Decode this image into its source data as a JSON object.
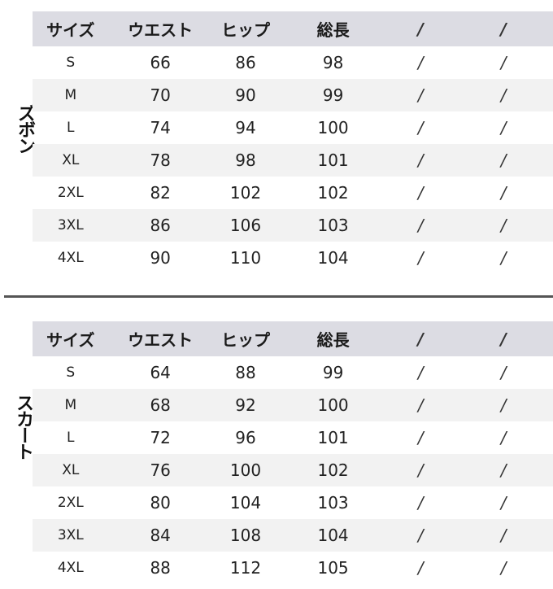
{
  "headers": [
    "サイズ",
    "ウエスト",
    "ヒップ",
    "総長",
    "/",
    "/"
  ],
  "pants": {
    "label": "ズボン",
    "rows": [
      [
        "S",
        "66",
        "86",
        "98",
        "/",
        "/"
      ],
      [
        "M",
        "70",
        "90",
        "99",
        "/",
        "/"
      ],
      [
        "L",
        "74",
        "94",
        "100",
        "/",
        "/"
      ],
      [
        "XL",
        "78",
        "98",
        "101",
        "/",
        "/"
      ],
      [
        "2XL",
        "82",
        "102",
        "102",
        "/",
        "/"
      ],
      [
        "3XL",
        "86",
        "106",
        "103",
        "/",
        "/"
      ],
      [
        "4XL",
        "90",
        "110",
        "104",
        "/",
        "/"
      ]
    ]
  },
  "skirt": {
    "label": "スカート",
    "rows": [
      [
        "S",
        "64",
        "88",
        "99",
        "/",
        "/"
      ],
      [
        "M",
        "68",
        "92",
        "100",
        "/",
        "/"
      ],
      [
        "L",
        "72",
        "96",
        "101",
        "/",
        "/"
      ],
      [
        "XL",
        "76",
        "100",
        "102",
        "/",
        "/"
      ],
      [
        "2XL",
        "80",
        "104",
        "103",
        "/",
        "/"
      ],
      [
        "3XL",
        "84",
        "108",
        "104",
        "/",
        "/"
      ],
      [
        "4XL",
        "88",
        "112",
        "105",
        "/",
        "/"
      ]
    ]
  },
  "colors": {
    "header_bg": "#dcdce3",
    "alt_row_bg": "#f2f2f2",
    "divider": "#555555"
  }
}
